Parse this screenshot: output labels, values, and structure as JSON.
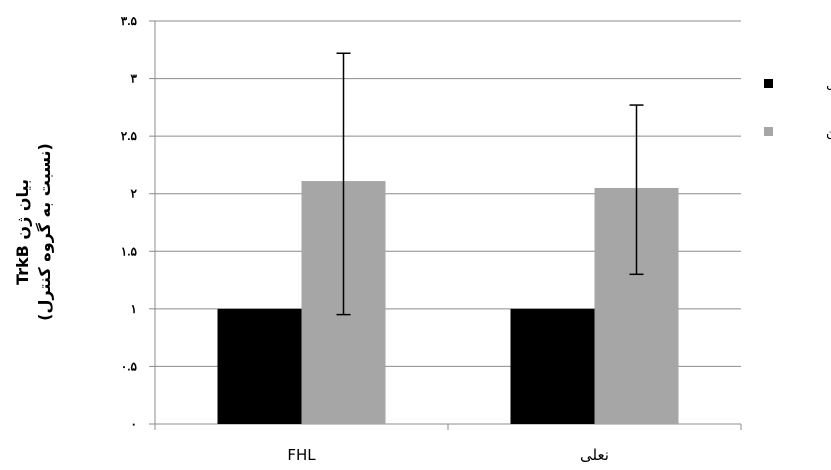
{
  "chart_data": {
    "type": "bar",
    "categories": [
      "FHL",
      "نعلی"
    ],
    "series": [
      {
        "name": "کنترل",
        "values": [
          1.0,
          1.0
        ],
        "color": "#000000"
      },
      {
        "name": "تمرین",
        "values": [
          2.11,
          2.05
        ],
        "color": "#a6a6a6",
        "error_low": [
          0.95,
          1.3
        ],
        "error_high": [
          3.22,
          2.77
        ]
      }
    ],
    "ylabel_line1": "بیان ژن TrkB",
    "ylabel_line2": "(نسبت به گروه کنترل)",
    "ylim": [
      0,
      3.5
    ],
    "yticks": [
      {
        "value": 0,
        "label": "٠"
      },
      {
        "value": 0.5,
        "label": "٠.۵"
      },
      {
        "value": 1,
        "label": "۱"
      },
      {
        "value": 1.5,
        "label": "۱.۵"
      },
      {
        "value": 2,
        "label": "۲"
      },
      {
        "value": 2.5,
        "label": "۲.۵"
      },
      {
        "value": 3,
        "label": "۳"
      },
      {
        "value": 3.5,
        "label": "۳.۵"
      }
    ],
    "grid": true,
    "legend_position": "right"
  }
}
